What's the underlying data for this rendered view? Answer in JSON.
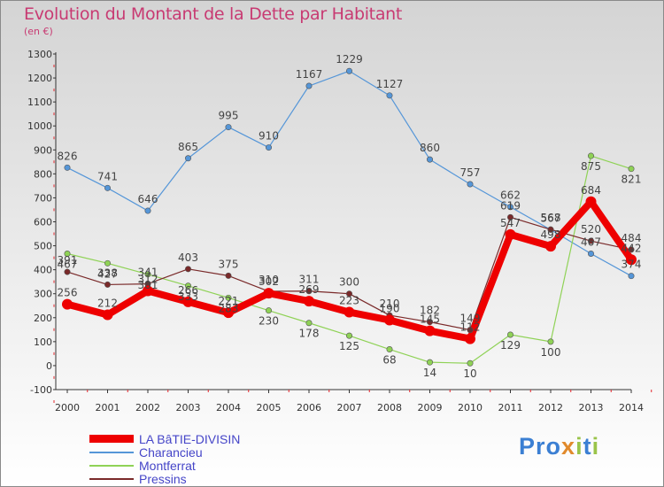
{
  "title": "Evolution du Montant de la Dette par Habitant",
  "subtitle": "(en €)",
  "logo": "Proxiti",
  "chart_data": {
    "type": "line",
    "x": [
      "2000",
      "2001",
      "2002",
      "2003",
      "2004",
      "2005",
      "2006",
      "2007",
      "2008",
      "2009",
      "2010",
      "2011",
      "2012",
      "2013",
      "2014"
    ],
    "ylim": [
      -100,
      1300
    ],
    "yticks": [
      "-100",
      "0",
      "100",
      "200",
      "300",
      "400",
      "500",
      "600",
      "700",
      "800",
      "900",
      "1000",
      "1100",
      "1200",
      "1300"
    ],
    "grid": false,
    "legend_position": "bottom-left",
    "series": [
      {
        "name": "LA BâTIE-DIVISIN",
        "color": "#ee0000",
        "values": [
          256,
          212,
          312,
          266,
          221,
          302,
          269,
          223,
          190,
          145,
          112,
          547,
          498,
          684,
          442
        ],
        "labels": [
          "256",
          "212",
          "312",
          "266",
          "221",
          "302",
          "269",
          "223",
          "190",
          "145",
          "112",
          "547",
          "498",
          "684",
          "442"
        ]
      },
      {
        "name": "Charancieu",
        "color": "#5596d8",
        "values": [
          826,
          741,
          646,
          865,
          995,
          910,
          1167,
          1229,
          1127,
          860,
          757,
          662,
          567,
          467,
          374
        ],
        "labels": [
          "826",
          "741",
          "646",
          "865",
          "995",
          "910",
          "1167",
          "1229",
          "1127",
          "860",
          "757",
          "662",
          "567",
          "467",
          "374"
        ]
      },
      {
        "name": "Montferrat",
        "color": "#8fd256",
        "values": [
          467,
          427,
          381,
          333,
          283,
          230,
          178,
          125,
          68,
          14,
          10,
          129,
          100,
          875,
          821
        ],
        "labels": [
          "467",
          "427",
          "381",
          "333",
          "283",
          "230",
          "178",
          "125",
          "68",
          "14",
          "10",
          "129",
          "100",
          "875",
          "821"
        ]
      },
      {
        "name": "Pressins",
        "color": "#7a2a2a",
        "values": [
          391,
          338,
          341,
          403,
          375,
          310,
          311,
          300,
          210,
          182,
          149,
          619,
          568,
          520,
          484
        ],
        "labels": [
          "391",
          "338",
          "341",
          "403",
          "375",
          "310",
          "311",
          "300",
          "210",
          "182",
          "149",
          "619",
          "568",
          "520",
          "484"
        ]
      }
    ]
  },
  "colors": {
    "title": "#c83a72",
    "axis": "#333333",
    "tick_marks": "#e3262d",
    "legend_text": "#4545c8"
  }
}
